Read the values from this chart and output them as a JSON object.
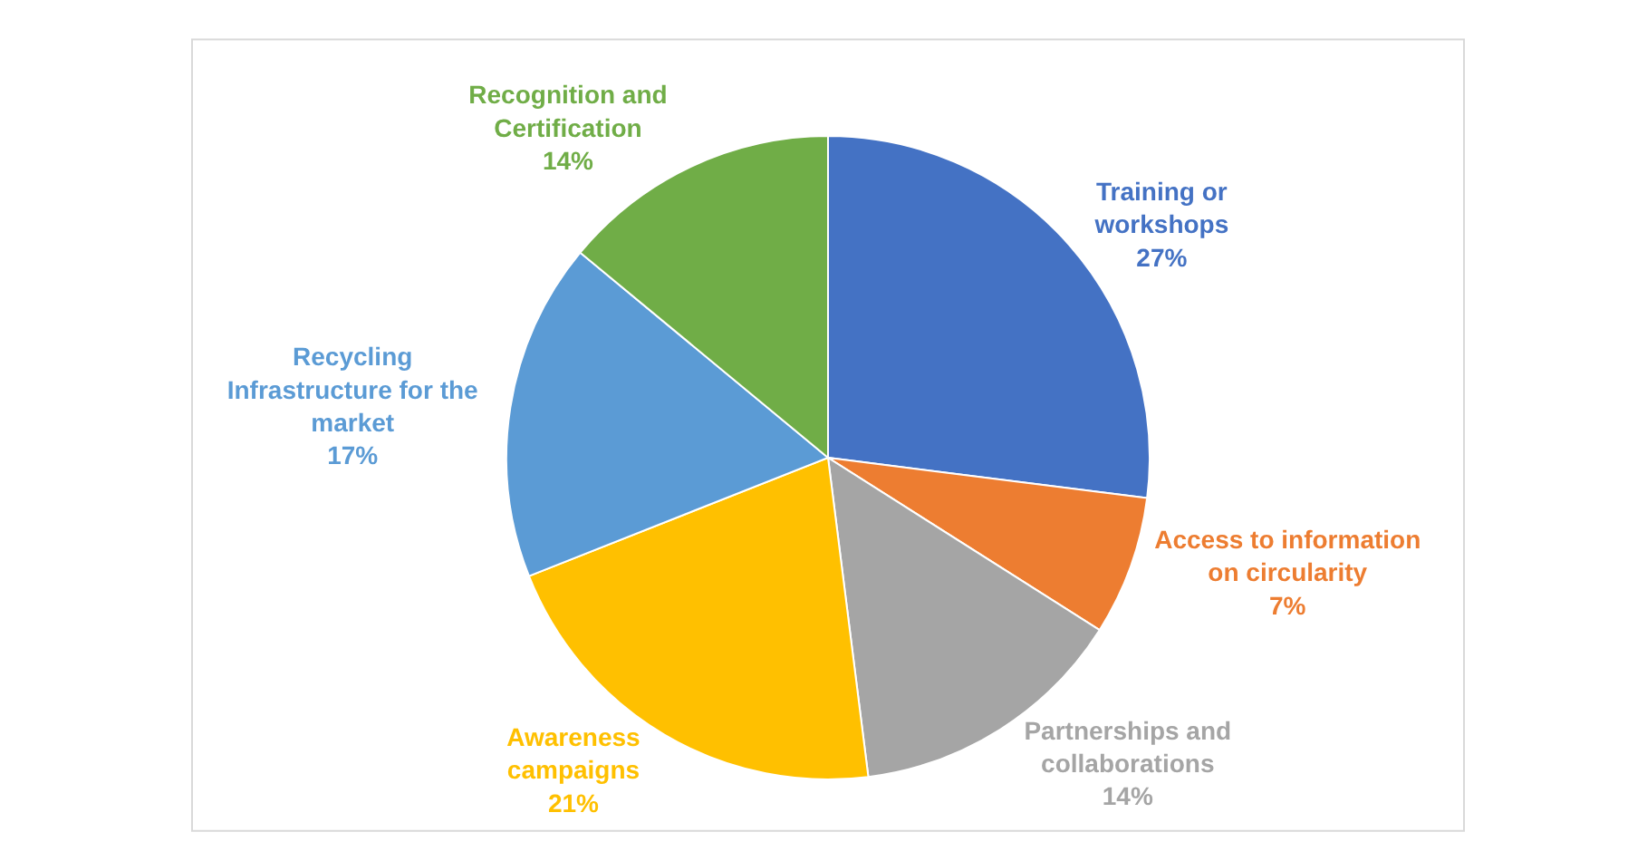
{
  "chart_data": {
    "type": "pie",
    "categories": [
      "Training or workshops",
      "Access to information on circularity",
      "Partnerships and collaborations",
      "Awareness campaigns",
      "Recycling Infrastructure for the market",
      "Recognition and Certification"
    ],
    "values": [
      27,
      7,
      14,
      21,
      17,
      14
    ],
    "value_labels": [
      "27%",
      "7%",
      "14%",
      "21%",
      "17%",
      "14%"
    ],
    "colors": [
      "#4472c4",
      "#ed7d31",
      "#a5a5a5",
      "#ffc000",
      "#5b9bd5",
      "#70ad47"
    ],
    "legend": false
  }
}
